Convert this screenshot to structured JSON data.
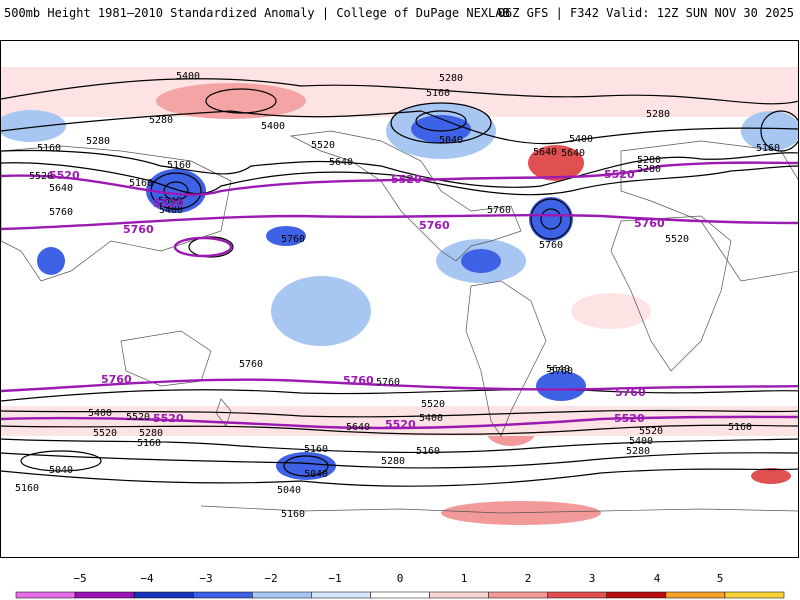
{
  "header": {
    "title_left": "500mb Height 1981–2010 Standardized Anomaly | College of DuPage NEXLAB",
    "title_right": "06Z GFS | F342 Valid: 12Z SUN NOV 30 2025"
  },
  "map": {
    "contour_labels": [
      {
        "id": "c5400-a",
        "text": "5400"
      },
      {
        "id": "c5280-a",
        "text": "5280"
      },
      {
        "id": "c5160-a",
        "text": "5160"
      },
      {
        "id": "c5040-a",
        "text": "5040"
      },
      {
        "id": "c5280-b",
        "text": "5280"
      },
      {
        "id": "c5400-b",
        "text": "5400"
      },
      {
        "id": "c5640-a",
        "text": "5640"
      },
      {
        "id": "c5280-c",
        "text": "5280"
      },
      {
        "id": "c5160-b",
        "text": "5160"
      },
      {
        "id": "c5280-d",
        "text": "5280"
      },
      {
        "id": "c5520-a",
        "text": "5520"
      },
      {
        "id": "c5640-b",
        "text": "5640"
      },
      {
        "id": "c5400-c",
        "text": "5400"
      },
      {
        "id": "c5160-c",
        "text": "5160"
      },
      {
        "id": "c5520-b",
        "text": "5520"
      },
      {
        "id": "c5640-c",
        "text": "5640"
      },
      {
        "id": "c5760-a",
        "text": "5760"
      },
      {
        "id": "c5760-b",
        "text": "5760"
      },
      {
        "id": "c5640-d",
        "text": "5640"
      },
      {
        "id": "c5280-e",
        "text": "5280"
      },
      {
        "id": "c5760-c",
        "text": "5760"
      },
      {
        "id": "c5760-d",
        "text": "5760"
      },
      {
        "id": "c5400-d",
        "text": "5400"
      },
      {
        "id": "c5280-f",
        "text": "5280"
      },
      {
        "id": "c5160-d",
        "text": "5160"
      },
      {
        "id": "c5520-c",
        "text": "5520"
      },
      {
        "id": "c5640-e",
        "text": "5640"
      },
      {
        "id": "c5160-e",
        "text": "5160"
      },
      {
        "id": "c5760-e",
        "text": "5760"
      },
      {
        "id": "c5760-f",
        "text": "5760"
      },
      {
        "id": "c5640-f",
        "text": "5640"
      },
      {
        "id": "c5640-g",
        "text": "5640"
      },
      {
        "id": "c5520-d",
        "text": "5520"
      },
      {
        "id": "c5520-e",
        "text": "5520"
      },
      {
        "id": "c5400-e",
        "text": "5400"
      },
      {
        "id": "c5280-g",
        "text": "5280"
      },
      {
        "id": "c5160-f",
        "text": "5160"
      },
      {
        "id": "c5040-b",
        "text": "5040"
      },
      {
        "id": "c5160-g",
        "text": "5160"
      },
      {
        "id": "c5040-c",
        "text": "5040"
      },
      {
        "id": "c5160-h",
        "text": "5160"
      },
      {
        "id": "c5280-h",
        "text": "5280"
      },
      {
        "id": "c5160-i",
        "text": "5160"
      },
      {
        "id": "c5520-f",
        "text": "5520"
      },
      {
        "id": "c5400-f",
        "text": "5400"
      },
      {
        "id": "c5520-g",
        "text": "5520"
      },
      {
        "id": "c5400-g",
        "text": "5400"
      },
      {
        "id": "c5280-i",
        "text": "5280"
      },
      {
        "id": "c5160-j",
        "text": "5160"
      },
      {
        "id": "c5160-k",
        "text": "5160"
      },
      {
        "id": "c5760-g",
        "text": "5760"
      },
      {
        "id": "c5040-d",
        "text": "5040"
      }
    ],
    "highlighted_contours": [
      {
        "id": "p5520-a",
        "text": "5520"
      },
      {
        "id": "p5520-b",
        "text": "5520"
      },
      {
        "id": "p5520-c",
        "text": "5520"
      },
      {
        "id": "p5520-d",
        "text": "5520"
      },
      {
        "id": "p5760-a",
        "text": "5760"
      },
      {
        "id": "p5760-b",
        "text": "5760"
      },
      {
        "id": "p5760-c",
        "text": "5760"
      },
      {
        "id": "p5760-d",
        "text": "5760"
      },
      {
        "id": "p5760-e",
        "text": "5760"
      },
      {
        "id": "p5760-f",
        "text": "5760"
      },
      {
        "id": "p5520-e",
        "text": "5520"
      },
      {
        "id": "p5520-f",
        "text": "5520"
      },
      {
        "id": "p5520-g",
        "text": "5520"
      }
    ],
    "colors": {
      "highlight_contour": "#9b1ab2",
      "contour": "#000000",
      "coastline": "#555555"
    }
  },
  "colorbar": {
    "ticks": [
      "−5",
      "−4",
      "−3",
      "−2",
      "−1",
      "0",
      "1",
      "2",
      "3",
      "4",
      "5"
    ],
    "colors": [
      "#e36ee8",
      "#9a14b6",
      "#1a33b8",
      "#3d62e6",
      "#a7c7f2",
      "#d6e6fb",
      "#ffffff",
      "#fbd5d5",
      "#f29a9a",
      "#e05050",
      "#b70f0f",
      "#f6a12a",
      "#f9d23b"
    ]
  }
}
